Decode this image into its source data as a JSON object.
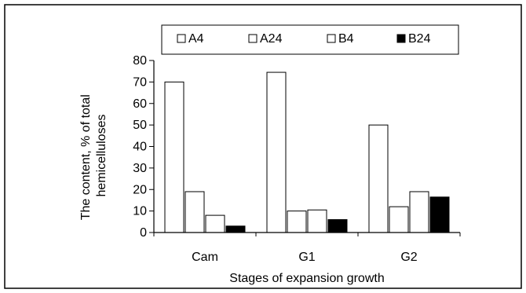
{
  "chart_data": {
    "type": "bar",
    "categories": [
      "Cam",
      "G1",
      "G2"
    ],
    "series": [
      {
        "name": "A4",
        "values": [
          70,
          74.5,
          50
        ],
        "color": "#ffffff"
      },
      {
        "name": "A24",
        "values": [
          19,
          10,
          12
        ],
        "color": "#ffffff"
      },
      {
        "name": "B4",
        "values": [
          8,
          10.5,
          19
        ],
        "color": "#ffffff"
      },
      {
        "name": "B24",
        "values": [
          3,
          6,
          16.5
        ],
        "color": "#000000"
      }
    ],
    "xlabel": "Stages of expansion growth",
    "ylabel_lines": [
      "The content, % of total",
      "hemicelluloses"
    ],
    "ylim": [
      0,
      80
    ],
    "yticks": [
      "0",
      "10",
      "20",
      "30",
      "40",
      "50",
      "60",
      "70",
      "80"
    ],
    "grid": false,
    "legend_position": "top"
  }
}
